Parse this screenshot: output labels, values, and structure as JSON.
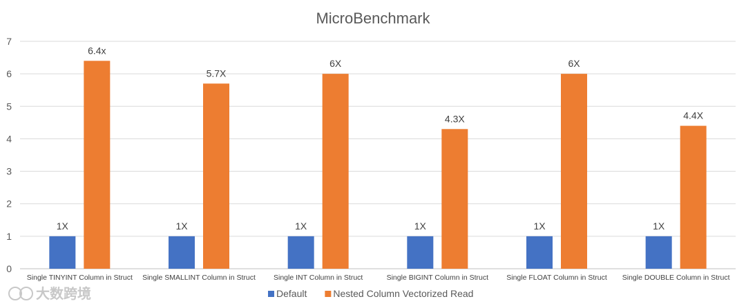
{
  "chart_data": {
    "type": "bar",
    "title": "MicroBenchmark",
    "xlabel": "",
    "ylabel": "",
    "ylim": [
      0,
      7
    ],
    "yticks": [
      0,
      1,
      2,
      3,
      4,
      5,
      6,
      7
    ],
    "grid": true,
    "legend_position": "bottom",
    "categories": [
      "Single TINYINT Column in Struct",
      "Single SMALLINT Column in Struct",
      "Single INT Column in Struct",
      "Single BIGINT Column in Struct",
      "Single FLOAT Column in Struct",
      "Single DOUBLE Column in Struct"
    ],
    "series": [
      {
        "name": "Default",
        "color": "#4472C4",
        "values": [
          1,
          1,
          1,
          1,
          1,
          1
        ],
        "labels": [
          "1X",
          "1X",
          "1X",
          "1X",
          "1X",
          "1X"
        ]
      },
      {
        "name": "Nested Column Vectorized Read",
        "color": "#ED7D31",
        "values": [
          6.4,
          5.7,
          6,
          4.3,
          6,
          4.4
        ],
        "labels": [
          "6.4x",
          "5.7X",
          "6X",
          "4.3X",
          "6X",
          "4.4X"
        ]
      }
    ]
  },
  "watermark": {
    "text": "大数跨境"
  }
}
